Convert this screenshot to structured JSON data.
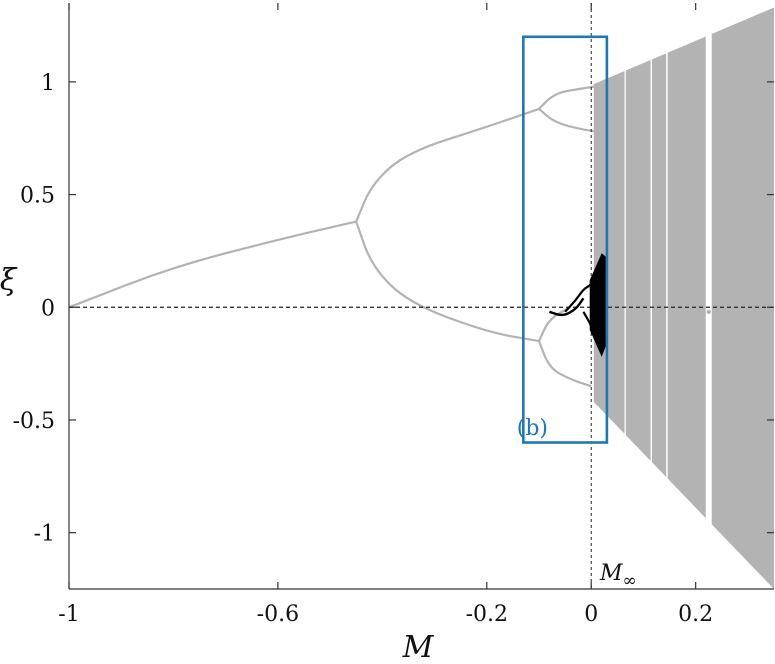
{
  "chart_data": {
    "type": "scatter",
    "title": "",
    "xlabel": "M",
    "ylabel": "ξ",
    "xlim": [
      -1,
      0.35
    ],
    "ylim": [
      -1.25,
      1.35
    ],
    "xticks": [
      -1,
      -0.6,
      -0.2,
      0,
      0.2
    ],
    "xtick_labels": [
      "-1",
      "-0.6",
      "-0.2",
      "0",
      "0.2"
    ],
    "yticks": [
      -1,
      -0.5,
      0,
      0.5,
      1
    ],
    "ytick_labels": [
      "-1",
      "-0.5",
      "0",
      "0.5",
      "1"
    ],
    "grid": false,
    "colors": {
      "bifurcation": "#b3b3b3",
      "highlight": "#000000",
      "box": "#1f77b4",
      "axes": "#333333"
    },
    "reference_lines": [
      {
        "orientation": "horizontal",
        "value": 0,
        "style": "dashed"
      },
      {
        "orientation": "vertical",
        "value": 0,
        "style": "dashed",
        "label": "M",
        "label_subscript": "∞"
      }
    ],
    "highlight_box": {
      "label": "(b)",
      "x_range": [
        -0.13,
        0.03
      ],
      "y_range": [
        -0.6,
        1.2
      ]
    },
    "series": [
      {
        "style": "gray",
        "role": "period-1 branch",
        "points": [
          [
            -1,
            0
          ],
          [
            -0.8,
            0.18
          ],
          [
            -0.6,
            0.3
          ],
          [
            -0.45,
            0.38
          ]
        ]
      },
      {
        "style": "gray",
        "role": "period-2 upper branch",
        "points": [
          [
            -0.45,
            0.38
          ],
          [
            -0.42,
            0.55
          ],
          [
            -0.35,
            0.69
          ],
          [
            -0.2,
            0.8
          ],
          [
            -0.1,
            0.88
          ]
        ]
      },
      {
        "style": "gray",
        "role": "period-2 lower branch",
        "points": [
          [
            -0.45,
            0.38
          ],
          [
            -0.42,
            0.18
          ],
          [
            -0.35,
            0.02
          ],
          [
            -0.2,
            -0.11
          ],
          [
            -0.1,
            -0.15
          ]
        ]
      },
      {
        "style": "gray",
        "role": "period-4 branches",
        "points": [
          [
            -0.1,
            0.88
          ],
          [
            -0.07,
            0.95
          ],
          [
            -0.02,
            0.97
          ],
          [
            0.01,
            0.98
          ],
          [
            -0.1,
            0.88
          ],
          [
            -0.07,
            0.82
          ],
          [
            -0.02,
            0.79
          ],
          [
            0.01,
            0.78
          ],
          [
            -0.1,
            -0.15
          ],
          [
            -0.08,
            -0.05
          ],
          [
            -0.04,
            -0.0
          ],
          [
            -0.1,
            -0.15
          ],
          [
            -0.08,
            -0.27
          ],
          [
            -0.04,
            -0.32
          ],
          [
            0.0,
            -0.35
          ]
        ]
      },
      {
        "style": "black",
        "role": "highlighted cascade",
        "points": [
          [
            -0.05,
            -0.02
          ],
          [
            -0.03,
            0.03
          ],
          [
            -0.015,
            0.08
          ],
          [
            0.0,
            0.1
          ],
          [
            0.02,
            0.15
          ],
          [
            -0.015,
            -0.02
          ],
          [
            0.0,
            -0.08
          ],
          [
            0.02,
            -0.2
          ]
        ]
      },
      {
        "style": "gray",
        "role": "chaotic band envelope",
        "points": [
          [
            0.01,
            1.0
          ],
          [
            0.35,
            1.33
          ],
          [
            0.01,
            -0.4
          ],
          [
            0.35,
            -1.25
          ]
        ]
      }
    ]
  }
}
